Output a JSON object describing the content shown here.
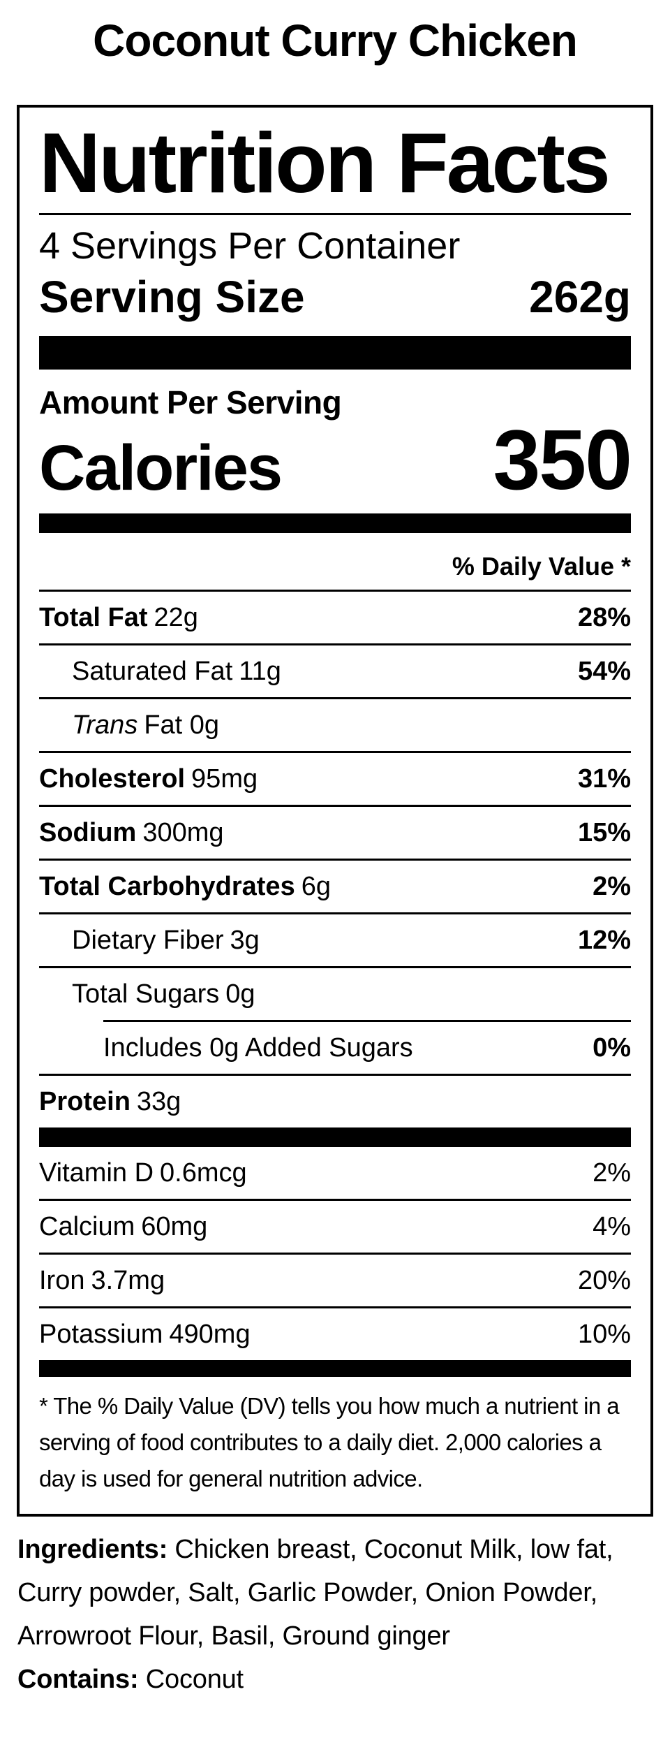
{
  "page_title": "Coconut Curry Chicken",
  "label": {
    "heading": "Nutrition Facts",
    "servings_per_container": "4 Servings Per Container",
    "serving_size_label": "Serving Size",
    "serving_size_value": "262g",
    "amount_per_serving": "Amount Per Serving",
    "calories_label": "Calories",
    "calories_value": "350",
    "daily_value_header": "% Daily Value *",
    "rows": [
      {
        "name": "Total Fat",
        "amount": "22g",
        "pct": "28%"
      },
      {
        "name": "Saturated Fat",
        "amount": "11g",
        "pct": "54%"
      },
      {
        "name": "Trans",
        "amount": "Fat 0g",
        "pct": ""
      },
      {
        "name": "Cholesterol",
        "amount": "95mg",
        "pct": "31%"
      },
      {
        "name": "Sodium",
        "amount": "300mg",
        "pct": "15%"
      },
      {
        "name": "Total Carbohydrates",
        "amount": "6g",
        "pct": "2%"
      },
      {
        "name": "Dietary Fiber",
        "amount": "3g",
        "pct": "12%"
      },
      {
        "name": "Total Sugars",
        "amount": "0g",
        "pct": ""
      },
      {
        "name": "Includes 0g Added Sugars",
        "amount": "",
        "pct": "0%"
      },
      {
        "name": "Protein",
        "amount": "33g",
        "pct": ""
      }
    ],
    "vitamins": [
      {
        "name": "Vitamin D",
        "amount": "0.6mcg",
        "pct": "2%"
      },
      {
        "name": "Calcium",
        "amount": "60mg",
        "pct": "4%"
      },
      {
        "name": "Iron",
        "amount": "3.7mg",
        "pct": "20%"
      },
      {
        "name": "Potassium",
        "amount": "490mg",
        "pct": "10%"
      }
    ],
    "footnote_lines": [
      "* The % Daily Value (DV) tells you how much a nutrient in a",
      "serving of food contributes to a daily diet. 2,000 calories a",
      "day is used for general nutrition advice."
    ]
  },
  "ingredients": {
    "label": "Ingredients:",
    "text": " Chicken breast, Coconut Milk, low fat, Curry powder, Salt, Garlic Powder, Onion Powder, Arrowroot Flour, Basil, Ground ginger"
  },
  "contains": {
    "label": "Contains:",
    "text": " Coconut"
  },
  "colors": {
    "foreground": "#000000",
    "background": "#ffffff"
  }
}
